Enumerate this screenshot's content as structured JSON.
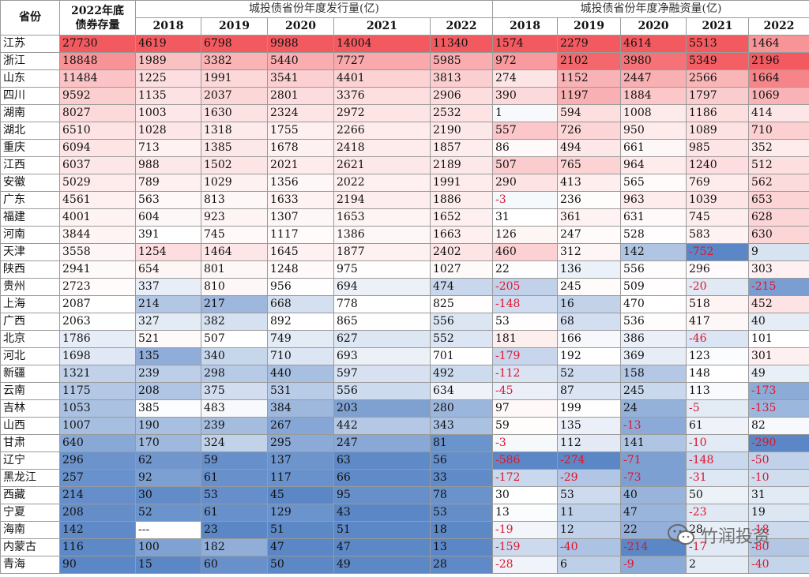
{
  "table": {
    "province_header": "省份",
    "stock_header": "2022年底\n债券存量",
    "group_issuance": "城投债省份年度发行量(亿)",
    "group_net": "城投债省份年度净融资量(亿)",
    "years": [
      "2018",
      "2019",
      "2020",
      "2021",
      "2022"
    ],
    "rows": [
      {
        "province": "江苏",
        "stock": "27730",
        "issuance": [
          "4619",
          "6798",
          "9988",
          "14004",
          "11340"
        ],
        "net": [
          "1574",
          "2279",
          "4614",
          "5513",
          "1464"
        ]
      },
      {
        "province": "浙江",
        "stock": "18848",
        "issuance": [
          "1989",
          "3382",
          "5440",
          "7727",
          "5985"
        ],
        "net": [
          "972",
          "2102",
          "3980",
          "5349",
          "2196"
        ]
      },
      {
        "province": "山东",
        "stock": "11484",
        "issuance": [
          "1225",
          "1991",
          "3541",
          "4401",
          "3813"
        ],
        "net": [
          "274",
          "1152",
          "2447",
          "2566",
          "1664"
        ]
      },
      {
        "province": "四川",
        "stock": "9592",
        "issuance": [
          "1135",
          "2037",
          "2801",
          "3376",
          "2906"
        ],
        "net": [
          "390",
          "1197",
          "1884",
          "1797",
          "1069"
        ]
      },
      {
        "province": "湖南",
        "stock": "8027",
        "issuance": [
          "1003",
          "1630",
          "2324",
          "2972",
          "2532"
        ],
        "net": [
          "1",
          "594",
          "1008",
          "1186",
          "414"
        ]
      },
      {
        "province": "湖北",
        "stock": "6510",
        "issuance": [
          "1028",
          "1318",
          "1755",
          "2266",
          "2190"
        ],
        "net": [
          "557",
          "726",
          "950",
          "1089",
          "710"
        ]
      },
      {
        "province": "重庆",
        "stock": "6094",
        "issuance": [
          "713",
          "1385",
          "1678",
          "2418",
          "1857"
        ],
        "net": [
          "86",
          "494",
          "661",
          "985",
          "352"
        ]
      },
      {
        "province": "江西",
        "stock": "6037",
        "issuance": [
          "988",
          "1502",
          "2021",
          "2621",
          "2189"
        ],
        "net": [
          "507",
          "765",
          "964",
          "1240",
          "512"
        ]
      },
      {
        "province": "安徽",
        "stock": "5029",
        "issuance": [
          "789",
          "1029",
          "1356",
          "2022",
          "1991"
        ],
        "net": [
          "290",
          "413",
          "565",
          "769",
          "562"
        ]
      },
      {
        "province": "广东",
        "stock": "4561",
        "issuance": [
          "563",
          "813",
          "1633",
          "2194",
          "1886"
        ],
        "net": [
          "-3",
          "236",
          "963",
          "1039",
          "653"
        ]
      },
      {
        "province": "福建",
        "stock": "4001",
        "issuance": [
          "604",
          "923",
          "1307",
          "1653",
          "1652"
        ],
        "net": [
          "31",
          "361",
          "631",
          "745",
          "628"
        ]
      },
      {
        "province": "河南",
        "stock": "3844",
        "issuance": [
          "391",
          "745",
          "1117",
          "1386",
          "1663"
        ],
        "net": [
          "126",
          "247",
          "528",
          "583",
          "630"
        ]
      },
      {
        "province": "天津",
        "stock": "3558",
        "issuance": [
          "1254",
          "1464",
          "1645",
          "1877",
          "2402"
        ],
        "net": [
          "460",
          "312",
          "142",
          "-752",
          "9"
        ]
      },
      {
        "province": "陕西",
        "stock": "2941",
        "issuance": [
          "654",
          "801",
          "1248",
          "975",
          "1027"
        ],
        "net": [
          "22",
          "136",
          "556",
          "296",
          "303"
        ]
      },
      {
        "province": "贵州",
        "stock": "2723",
        "issuance": [
          "337",
          "810",
          "956",
          "694",
          "474"
        ],
        "net": [
          "-205",
          "245",
          "509",
          "-20",
          "-215"
        ]
      },
      {
        "province": "上海",
        "stock": "2087",
        "issuance": [
          "214",
          "217",
          "668",
          "778",
          "825"
        ],
        "net": [
          "-148",
          "16",
          "470",
          "518",
          "452"
        ]
      },
      {
        "province": "广西",
        "stock": "2063",
        "issuance": [
          "327",
          "382",
          "892",
          "865",
          "556"
        ],
        "net": [
          "53",
          "68",
          "536",
          "417",
          "40"
        ]
      },
      {
        "province": "北京",
        "stock": "1786",
        "issuance": [
          "521",
          "507",
          "749",
          "627",
          "552"
        ],
        "net": [
          "181",
          "166",
          "386",
          "-46",
          "101"
        ]
      },
      {
        "province": "河北",
        "stock": "1698",
        "issuance": [
          "135",
          "340",
          "710",
          "693",
          "701"
        ],
        "net": [
          "-179",
          "192",
          "369",
          "123",
          "301"
        ]
      },
      {
        "province": "新疆",
        "stock": "1321",
        "issuance": [
          "239",
          "298",
          "440",
          "597",
          "492"
        ],
        "net": [
          "-112",
          "52",
          "158",
          "148",
          "49"
        ]
      },
      {
        "province": "云南",
        "stock": "1175",
        "issuance": [
          "208",
          "375",
          "531",
          "556",
          "634"
        ],
        "net": [
          "-45",
          "87",
          "245",
          "113",
          "-173"
        ]
      },
      {
        "province": "吉林",
        "stock": "1053",
        "issuance": [
          "385",
          "483",
          "384",
          "203",
          "280"
        ],
        "net": [
          "97",
          "199",
          "24",
          "-5",
          "-135"
        ]
      },
      {
        "province": "山西",
        "stock": "1007",
        "issuance": [
          "190",
          "239",
          "267",
          "442",
          "343"
        ],
        "net": [
          "59",
          "135",
          "-13",
          "61",
          "82"
        ]
      },
      {
        "province": "甘肃",
        "stock": "640",
        "issuance": [
          "170",
          "324",
          "295",
          "247",
          "81"
        ],
        "net": [
          "-3",
          "112",
          "141",
          "-10",
          "-290"
        ]
      },
      {
        "province": "辽宁",
        "stock": "296",
        "issuance": [
          "62",
          "59",
          "137",
          "63",
          "56"
        ],
        "net": [
          "-586",
          "-274",
          "-71",
          "-148",
          "-50"
        ]
      },
      {
        "province": "黑龙江",
        "stock": "257",
        "issuance": [
          "92",
          "61",
          "117",
          "66",
          "33"
        ],
        "net": [
          "-172",
          "-29",
          "-73",
          "-31",
          "-10"
        ]
      },
      {
        "province": "西藏",
        "stock": "214",
        "issuance": [
          "30",
          "53",
          "45",
          "95",
          "78"
        ],
        "net": [
          "30",
          "53",
          "40",
          "50",
          "31"
        ]
      },
      {
        "province": "宁夏",
        "stock": "208",
        "issuance": [
          "52",
          "61",
          "129",
          "43",
          "53"
        ],
        "net": [
          "13",
          "11",
          "47",
          "-23",
          "19"
        ]
      },
      {
        "province": "海南",
        "stock": "142",
        "issuance": [
          "---",
          "23",
          "51",
          "51",
          "18"
        ],
        "net": [
          "-19",
          "12",
          "22",
          "28",
          "-18"
        ]
      },
      {
        "province": "内蒙古",
        "stock": "116",
        "issuance": [
          "100",
          "182",
          "47",
          "47",
          "13"
        ],
        "net": [
          "-159",
          "-40",
          "-214",
          "-17",
          "-80"
        ]
      },
      {
        "province": "青海",
        "stock": "90",
        "issuance": [
          "15",
          "60",
          "50",
          "49",
          "28"
        ],
        "net": [
          "-28",
          "6",
          "-9",
          "2",
          "-40"
        ]
      }
    ]
  },
  "watermark": {
    "text": "竹润投资",
    "icon": "wechat-icon"
  },
  "colors": {
    "heat_high": "#f35a60",
    "heat_mid": "#ffffff",
    "heat_low": "#5b87c6",
    "negative_text": "#e0152b",
    "border": "#9a9a9a"
  }
}
